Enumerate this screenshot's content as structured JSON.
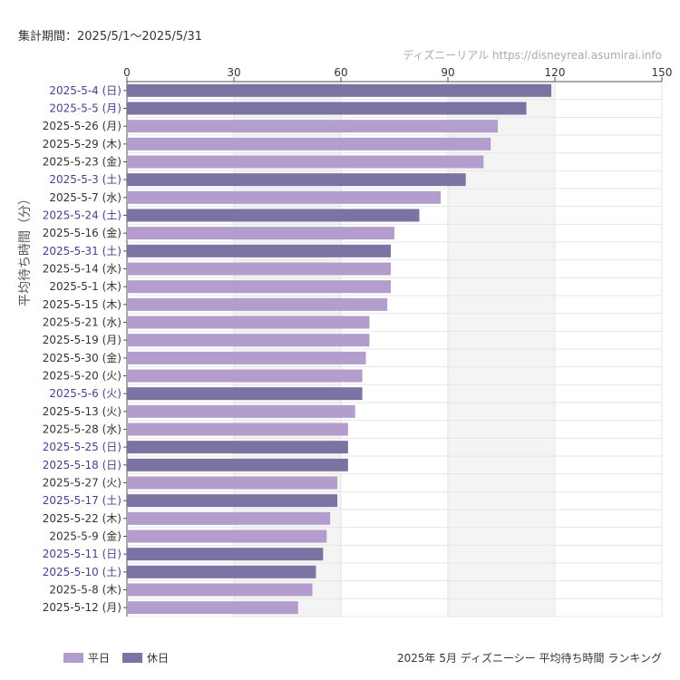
{
  "period_label": "集計期間：2025/5/1～2025/5/31",
  "credit": "ディズニーリアル https://disneyreal.asumirai.info",
  "footer_title": "2025年 5月 ディズニーシー 平均待ち時間 ランキング",
  "legend": [
    {
      "label": "平日",
      "color": "#b39dcc"
    },
    {
      "label": "休日",
      "color": "#7b74a3"
    }
  ],
  "colors": {
    "weekday": "#b39dcc",
    "holiday": "#7b74a3",
    "holiday_label": "#4a3f8c",
    "weekday_label": "#333333"
  },
  "chart_data": {
    "type": "bar",
    "orientation": "horizontal",
    "ylabel": "平均待ち時間（分）",
    "xlim": [
      0,
      150
    ],
    "xticks": [
      0,
      30,
      60,
      90,
      120,
      150
    ],
    "grid": true,
    "legend_position": "bottom-left",
    "categories": [
      "2025-5-4 (日)",
      "2025-5-5 (月)",
      "2025-5-26 (月)",
      "2025-5-29 (木)",
      "2025-5-23 (金)",
      "2025-5-3 (土)",
      "2025-5-7 (水)",
      "2025-5-24 (土)",
      "2025-5-16 (金)",
      "2025-5-31 (土)",
      "2025-5-14 (水)",
      "2025-5-1 (木)",
      "2025-5-15 (木)",
      "2025-5-21 (水)",
      "2025-5-19 (月)",
      "2025-5-30 (金)",
      "2025-5-20 (火)",
      "2025-5-6 (火)",
      "2025-5-13 (火)",
      "2025-5-28 (水)",
      "2025-5-25 (日)",
      "2025-5-18 (日)",
      "2025-5-27 (火)",
      "2025-5-17 (土)",
      "2025-5-22 (木)",
      "2025-5-9 (金)",
      "2025-5-11 (日)",
      "2025-5-10 (土)",
      "2025-5-8 (木)",
      "2025-5-12 (月)"
    ],
    "values": [
      119,
      112,
      104,
      102,
      100,
      95,
      88,
      82,
      75,
      74,
      74,
      74,
      73,
      68,
      68,
      67,
      66,
      66,
      64,
      62,
      62,
      62,
      59,
      59,
      57,
      56,
      55,
      53,
      52,
      48
    ],
    "holiday": [
      1,
      1,
      0,
      0,
      0,
      1,
      0,
      1,
      0,
      1,
      0,
      0,
      0,
      0,
      0,
      0,
      0,
      1,
      0,
      0,
      1,
      1,
      0,
      1,
      0,
      0,
      1,
      1,
      0,
      0
    ]
  }
}
